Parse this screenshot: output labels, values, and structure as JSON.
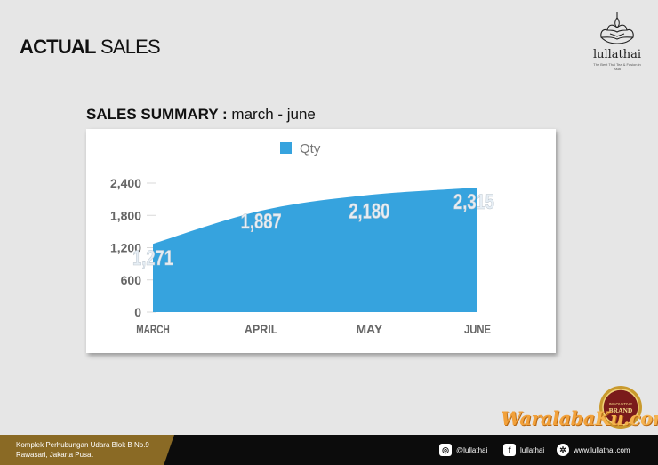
{
  "header": {
    "title_bold": "ACTUAL",
    "title_rest": " SALES"
  },
  "brand": {
    "name": "lullathai",
    "tagline": "The Best Thai Tea & Fusion in Asia",
    "icon": "lotus-temple-icon"
  },
  "summary": {
    "title_bold": "SALES SUMMARY :",
    "title_rest": " march - june"
  },
  "chart_data": {
    "type": "area",
    "categories": [
      "MARCH",
      "APRIL",
      "MAY",
      "JUNE"
    ],
    "series": [
      {
        "name": "Qty",
        "values": [
          1271,
          1887,
          2180,
          2315
        ],
        "labels": [
          "1,271",
          "1,887",
          "2,180",
          "2,315"
        ]
      }
    ],
    "yticks": [
      "0",
      "600",
      "1,200",
      "1,800",
      "2,400"
    ],
    "ylim": [
      0,
      2400
    ],
    "legend": "top-center",
    "grid": false,
    "color": "#36a3de"
  },
  "watermark": {
    "main": "Waralaba",
    "ku": "Ku.com"
  },
  "badge": {
    "line1": "INNOVATIVE",
    "line2": "BRAND"
  },
  "footer": {
    "address_line1": "Komplek Perhubungan Udara Blok B No.9",
    "address_line2": "Rawasari, Jakarta Pusat",
    "instagram": "@lullathai",
    "facebook": "lullathai",
    "website": "www.lullathai.com"
  }
}
